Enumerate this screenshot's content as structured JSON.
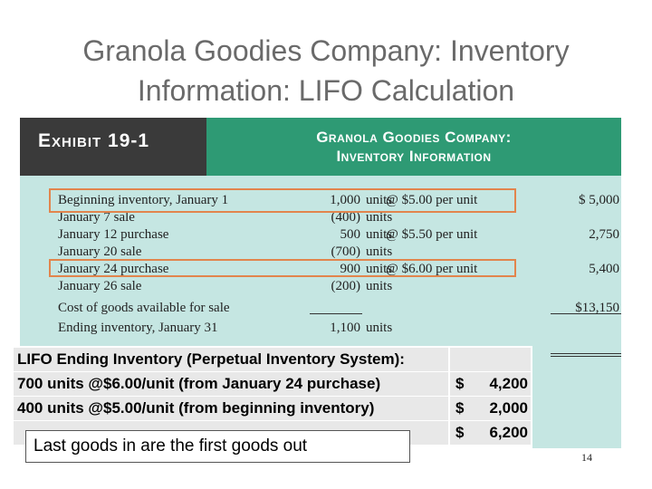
{
  "slide": {
    "title_line1": "Granola Goodies Company: Inventory",
    "title_line2": "Information: LIFO Calculation",
    "page_number": "14"
  },
  "exhibit": {
    "label": "Exhibit 19-1",
    "heading_line1": "Granola Goodies Company:",
    "heading_line2": "Inventory Information",
    "rows": [
      {
        "desc": "Beginning inventory, January 1",
        "qty": "1,000",
        "units": "units",
        "price": "@ $5.00 per unit",
        "total": "$ 5,000"
      },
      {
        "desc": "January 7 sale",
        "qty": "(400)",
        "units": "units",
        "price": "",
        "total": ""
      },
      {
        "desc": "January 12 purchase",
        "qty": "500",
        "units": "units",
        "price": "@ $5.50 per unit",
        "total": "2,750"
      },
      {
        "desc": "January 20 sale",
        "qty": "(700)",
        "units": "units",
        "price": "",
        "total": ""
      },
      {
        "desc": "January 24 purchase",
        "qty": "900",
        "units": "units",
        "price": "@ $6.00 per unit",
        "total": "5,400"
      },
      {
        "desc": "January 26 sale",
        "qty": "(200)",
        "units": "units",
        "price": "",
        "total": ""
      },
      {
        "desc": "Cost of goods available for sale",
        "qty": "",
        "units": "",
        "price": "",
        "total": "$13,150"
      },
      {
        "desc": "Ending inventory, January 31",
        "qty": "1,100",
        "units": "units",
        "price": "",
        "total": ""
      }
    ],
    "highlight_color": "#e2854d"
  },
  "lifo": {
    "rows": [
      {
        "label": "LIFO Ending Inventory (Perpetual Inventory System):",
        "dollar": "",
        "amount": ""
      },
      {
        "label": "700 units @$6.00/unit (from January 24 purchase)",
        "dollar": "$",
        "amount": "4,200"
      },
      {
        "label": "400 units @$5.00/unit (from beginning inventory)",
        "dollar": "$",
        "amount": "2,000"
      },
      {
        "label": "",
        "dollar": "$",
        "amount": "6,200"
      }
    ]
  },
  "callout": {
    "text": "Last goods in are the first goods out"
  }
}
